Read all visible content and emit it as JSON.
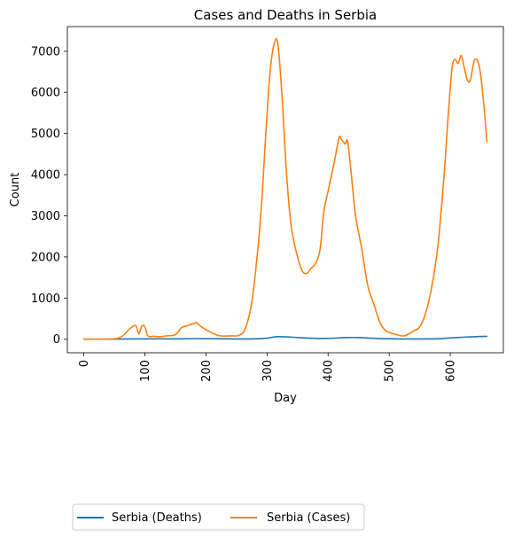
{
  "chart_data": {
    "type": "line",
    "title": "Cases and Deaths in Serbia",
    "xlabel": "Day",
    "ylabel": "Count",
    "xlim": [
      -27,
      687
    ],
    "ylim": [
      -330,
      7600
    ],
    "xticks": [
      0,
      100,
      200,
      300,
      400,
      500,
      600
    ],
    "yticks": [
      0,
      1000,
      2000,
      3000,
      4000,
      5000,
      6000,
      7000
    ],
    "legend_position": "bottom-left, below plot",
    "series": [
      {
        "name": "Serbia (Deaths)",
        "color": "#1f77b4",
        "x": [
          0,
          50,
          100,
          150,
          180,
          220,
          270,
          300,
          315,
          340,
          370,
          400,
          430,
          450,
          470,
          500,
          550,
          580,
          600,
          630,
          660
        ],
        "y": [
          0,
          2,
          8,
          8,
          15,
          10,
          5,
          25,
          60,
          50,
          25,
          20,
          40,
          40,
          25,
          10,
          5,
          10,
          30,
          55,
          70
        ]
      },
      {
        "name": "Serbia (Cases)",
        "color": "#ff7f0e",
        "x": [
          0,
          30,
          55,
          65,
          75,
          85,
          90,
          95,
          100,
          105,
          115,
          125,
          135,
          150,
          160,
          170,
          180,
          185,
          190,
          200,
          220,
          240,
          255,
          265,
          275,
          285,
          292,
          298,
          305,
          312,
          318,
          325,
          332,
          340,
          350,
          358,
          365,
          372,
          380,
          387,
          393,
          400,
          410,
          418,
          422,
          428,
          432,
          438,
          445,
          455,
          465,
          475,
          485,
          495,
          510,
          525,
          540,
          550,
          560,
          570,
          580,
          590,
          597,
          603,
          608,
          613,
          618,
          623,
          628,
          633,
          640,
          648,
          655,
          660
        ],
        "y": [
          0,
          0,
          20,
          100,
          250,
          330,
          130,
          320,
          300,
          80,
          70,
          60,
          80,
          110,
          280,
          330,
          380,
          400,
          330,
          230,
          90,
          80,
          100,
          280,
          900,
          2200,
          3500,
          5000,
          6500,
          7200,
          7150,
          5800,
          4000,
          2700,
          2000,
          1650,
          1600,
          1720,
          1850,
          2200,
          3100,
          3600,
          4300,
          4900,
          4850,
          4750,
          4800,
          4000,
          3000,
          2200,
          1300,
          850,
          400,
          200,
          120,
          80,
          200,
          300,
          650,
          1300,
          2300,
          4000,
          5500,
          6600,
          6800,
          6700,
          6900,
          6600,
          6300,
          6300,
          6800,
          6600,
          5700,
          4800
        ]
      }
    ]
  }
}
